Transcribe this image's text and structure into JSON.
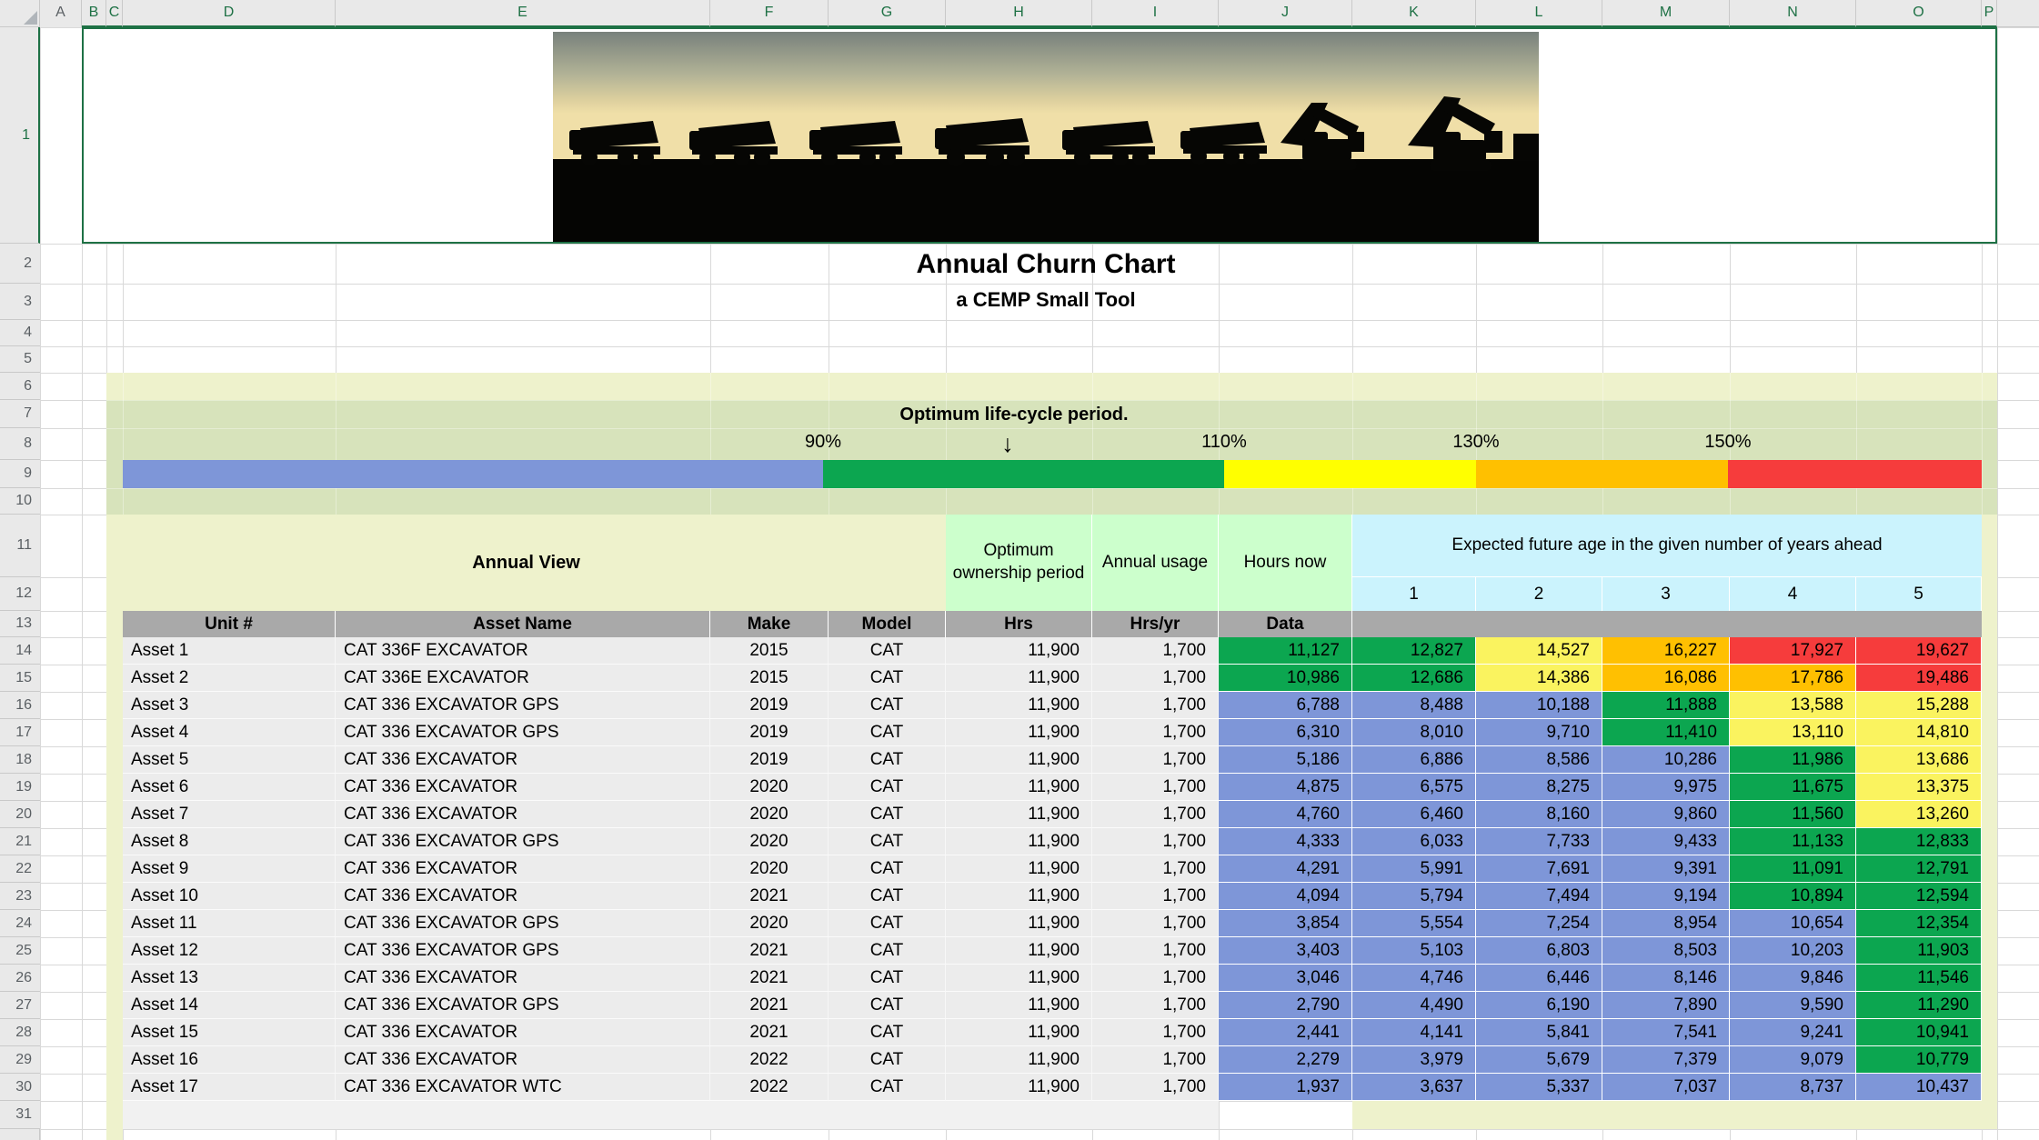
{
  "sheet": {
    "column_headers": [
      "A",
      "B",
      "C",
      "D",
      "E",
      "F",
      "G",
      "H",
      "I",
      "J",
      "K",
      "L",
      "M",
      "N",
      "O",
      "P"
    ],
    "row_numbers": [
      "1",
      "2",
      "3",
      "4",
      "5",
      "6",
      "7",
      "8",
      "9",
      "10",
      "11",
      "12",
      "13",
      "14",
      "15",
      "16",
      "17",
      "18",
      "19",
      "20",
      "21",
      "22",
      "23",
      "24",
      "25",
      "26",
      "27",
      "28",
      "29",
      "30",
      "31"
    ]
  },
  "title": "Annual Churn Chart",
  "subtitle": "a CEMP Small Tool",
  "banner": {
    "image_name": "construction-equipment-silhouette-photo"
  },
  "lifecycle": {
    "label": "Optimum life-cycle period.",
    "arrow": "↓",
    "tick_labels": [
      "90%",
      "110%",
      "130%",
      "150%"
    ],
    "segment_colors": [
      "#7e96d8",
      "#0ca650",
      "#ffff00",
      "#ffc000",
      "#f63c3c"
    ]
  },
  "table": {
    "annual_view_label": "Annual View",
    "ownership_label": "Optimum ownership period",
    "usage_label": "Annual usage",
    "hours_now_label": "Hours now",
    "expected_label": "Expected future age in the given number of years ahead",
    "year_headers": [
      "1",
      "2",
      "3",
      "4",
      "5"
    ],
    "sub_headers": [
      "Unit #",
      "Asset Name",
      "Make",
      "Model",
      "Hrs",
      "Hrs/yr",
      "Data"
    ],
    "cell_colors": {
      "blue": "#7e96d8",
      "green": "#0ca650",
      "yellow": "#faf35f",
      "orange": "#ffc001",
      "red": "#f63c3c"
    },
    "rows": [
      {
        "unit": "Asset 1",
        "name": "CAT 336F EXCAVATOR",
        "make": "2015",
        "model": "CAT",
        "hrs": "11,900",
        "hrs_yr": "1,700",
        "values": [
          "11,127",
          "12,827",
          "14,527",
          "16,227",
          "17,927",
          "19,627"
        ],
        "colors": [
          "green",
          "green",
          "yellow",
          "orange",
          "red",
          "red"
        ]
      },
      {
        "unit": "Asset 2",
        "name": "CAT 336E EXCAVATOR",
        "make": "2015",
        "model": "CAT",
        "hrs": "11,900",
        "hrs_yr": "1,700",
        "values": [
          "10,986",
          "12,686",
          "14,386",
          "16,086",
          "17,786",
          "19,486"
        ],
        "colors": [
          "green",
          "green",
          "yellow",
          "orange",
          "orange",
          "red"
        ]
      },
      {
        "unit": "Asset 3",
        "name": "CAT 336 EXCAVATOR GPS",
        "make": "2019",
        "model": "CAT",
        "hrs": "11,900",
        "hrs_yr": "1,700",
        "values": [
          "6,788",
          "8,488",
          "10,188",
          "11,888",
          "13,588",
          "15,288"
        ],
        "colors": [
          "blue",
          "blue",
          "blue",
          "green",
          "yellow",
          "yellow"
        ]
      },
      {
        "unit": "Asset 4",
        "name": "CAT 336 EXCAVATOR GPS",
        "make": "2019",
        "model": "CAT",
        "hrs": "11,900",
        "hrs_yr": "1,700",
        "values": [
          "6,310",
          "8,010",
          "9,710",
          "11,410",
          "13,110",
          "14,810"
        ],
        "colors": [
          "blue",
          "blue",
          "blue",
          "green",
          "yellow",
          "yellow"
        ]
      },
      {
        "unit": "Asset 5",
        "name": "CAT 336 EXCAVATOR",
        "make": "2019",
        "model": "CAT",
        "hrs": "11,900",
        "hrs_yr": "1,700",
        "values": [
          "5,186",
          "6,886",
          "8,586",
          "10,286",
          "11,986",
          "13,686"
        ],
        "colors": [
          "blue",
          "blue",
          "blue",
          "blue",
          "green",
          "yellow"
        ]
      },
      {
        "unit": "Asset 6",
        "name": "CAT 336 EXCAVATOR",
        "make": "2020",
        "model": "CAT",
        "hrs": "11,900",
        "hrs_yr": "1,700",
        "values": [
          "4,875",
          "6,575",
          "8,275",
          "9,975",
          "11,675",
          "13,375"
        ],
        "colors": [
          "blue",
          "blue",
          "blue",
          "blue",
          "green",
          "yellow"
        ]
      },
      {
        "unit": "Asset 7",
        "name": "CAT 336 EXCAVATOR",
        "make": "2020",
        "model": "CAT",
        "hrs": "11,900",
        "hrs_yr": "1,700",
        "values": [
          "4,760",
          "6,460",
          "8,160",
          "9,860",
          "11,560",
          "13,260"
        ],
        "colors": [
          "blue",
          "blue",
          "blue",
          "blue",
          "green",
          "yellow"
        ]
      },
      {
        "unit": "Asset 8",
        "name": "CAT 336 EXCAVATOR GPS",
        "make": "2020",
        "model": "CAT",
        "hrs": "11,900",
        "hrs_yr": "1,700",
        "values": [
          "4,333",
          "6,033",
          "7,733",
          "9,433",
          "11,133",
          "12,833"
        ],
        "colors": [
          "blue",
          "blue",
          "blue",
          "blue",
          "green",
          "green"
        ]
      },
      {
        "unit": "Asset 9",
        "name": "CAT 336 EXCAVATOR",
        "make": "2020",
        "model": "CAT",
        "hrs": "11,900",
        "hrs_yr": "1,700",
        "values": [
          "4,291",
          "5,991",
          "7,691",
          "9,391",
          "11,091",
          "12,791"
        ],
        "colors": [
          "blue",
          "blue",
          "blue",
          "blue",
          "green",
          "green"
        ]
      },
      {
        "unit": "Asset 10",
        "name": "CAT 336 EXCAVATOR",
        "make": "2021",
        "model": "CAT",
        "hrs": "11,900",
        "hrs_yr": "1,700",
        "values": [
          "4,094",
          "5,794",
          "7,494",
          "9,194",
          "10,894",
          "12,594"
        ],
        "colors": [
          "blue",
          "blue",
          "blue",
          "blue",
          "green",
          "green"
        ]
      },
      {
        "unit": "Asset 11",
        "name": "CAT 336 EXCAVATOR GPS",
        "make": "2020",
        "model": "CAT",
        "hrs": "11,900",
        "hrs_yr": "1,700",
        "values": [
          "3,854",
          "5,554",
          "7,254",
          "8,954",
          "10,654",
          "12,354"
        ],
        "colors": [
          "blue",
          "blue",
          "blue",
          "blue",
          "blue",
          "green"
        ]
      },
      {
        "unit": "Asset 12",
        "name": "CAT 336 EXCAVATOR GPS",
        "make": "2021",
        "model": "CAT",
        "hrs": "11,900",
        "hrs_yr": "1,700",
        "values": [
          "3,403",
          "5,103",
          "6,803",
          "8,503",
          "10,203",
          "11,903"
        ],
        "colors": [
          "blue",
          "blue",
          "blue",
          "blue",
          "blue",
          "green"
        ]
      },
      {
        "unit": "Asset 13",
        "name": "CAT 336 EXCAVATOR",
        "make": "2021",
        "model": "CAT",
        "hrs": "11,900",
        "hrs_yr": "1,700",
        "values": [
          "3,046",
          "4,746",
          "6,446",
          "8,146",
          "9,846",
          "11,546"
        ],
        "colors": [
          "blue",
          "blue",
          "blue",
          "blue",
          "blue",
          "green"
        ]
      },
      {
        "unit": "Asset 14",
        "name": "CAT 336 EXCAVATOR GPS",
        "make": "2021",
        "model": "CAT",
        "hrs": "11,900",
        "hrs_yr": "1,700",
        "values": [
          "2,790",
          "4,490",
          "6,190",
          "7,890",
          "9,590",
          "11,290"
        ],
        "colors": [
          "blue",
          "blue",
          "blue",
          "blue",
          "blue",
          "green"
        ]
      },
      {
        "unit": "Asset 15",
        "name": "CAT 336 EXCAVATOR",
        "make": "2021",
        "model": "CAT",
        "hrs": "11,900",
        "hrs_yr": "1,700",
        "values": [
          "2,441",
          "4,141",
          "5,841",
          "7,541",
          "9,241",
          "10,941"
        ],
        "colors": [
          "blue",
          "blue",
          "blue",
          "blue",
          "blue",
          "green"
        ]
      },
      {
        "unit": "Asset 16",
        "name": "CAT 336 EXCAVATOR",
        "make": "2022",
        "model": "CAT",
        "hrs": "11,900",
        "hrs_yr": "1,700",
        "values": [
          "2,279",
          "3,979",
          "5,679",
          "7,379",
          "9,079",
          "10,779"
        ],
        "colors": [
          "blue",
          "blue",
          "blue",
          "blue",
          "blue",
          "green"
        ]
      },
      {
        "unit": "Asset 17",
        "name": "CAT 336 EXCAVATOR WTC",
        "make": "2022",
        "model": "CAT",
        "hrs": "11,900",
        "hrs_yr": "1,700",
        "values": [
          "1,937",
          "3,637",
          "5,337",
          "7,037",
          "8,737",
          "10,437"
        ],
        "colors": [
          "blue",
          "blue",
          "blue",
          "blue",
          "blue",
          "blue"
        ]
      }
    ]
  },
  "theme": {
    "light_yellow": "#eef2cc",
    "olive_band": "#d7e3bb",
    "mint": "#ccffcc",
    "cyan": "#cbf3fd",
    "header_gray": "#a9a9a9",
    "selection_green": "#1e7145"
  }
}
